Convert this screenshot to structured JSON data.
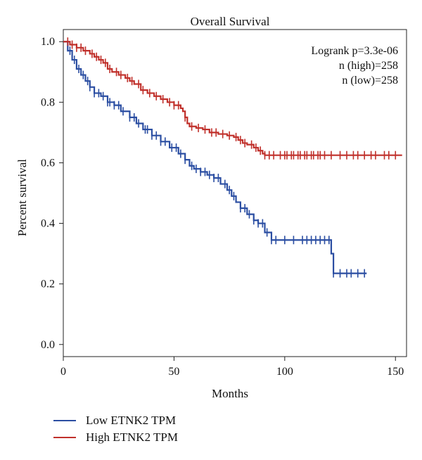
{
  "chart_data": {
    "type": "line",
    "title": "Overall Survival",
    "xlabel": "Months",
    "ylabel": "Percent survival",
    "xlim": [
      0,
      155
    ],
    "ylim": [
      -0.04,
      1.04
    ],
    "xticks": [
      0,
      50,
      100,
      150
    ],
    "yticks": [
      0.0,
      0.2,
      0.4,
      0.6,
      0.8,
      1.0
    ],
    "annotations": [
      "Logrank p=3.3e-06",
      "n (high)=258",
      "n (low)=258"
    ],
    "legend_position": "bottom-left, below plot",
    "series": [
      {
        "name": "Low ETNK2 TPM",
        "color": "#2b4ea2",
        "points": [
          [
            0,
            1.0
          ],
          [
            2,
            0.97
          ],
          [
            4,
            0.94
          ],
          [
            6,
            0.91
          ],
          [
            8,
            0.89
          ],
          [
            10,
            0.87
          ],
          [
            12,
            0.85
          ],
          [
            14,
            0.83
          ],
          [
            17,
            0.82
          ],
          [
            20,
            0.8
          ],
          [
            23,
            0.79
          ],
          [
            26,
            0.77
          ],
          [
            30,
            0.75
          ],
          [
            33,
            0.73
          ],
          [
            36,
            0.71
          ],
          [
            40,
            0.69
          ],
          [
            44,
            0.67
          ],
          [
            48,
            0.65
          ],
          [
            52,
            0.63
          ],
          [
            55,
            0.61
          ],
          [
            57,
            0.59
          ],
          [
            59,
            0.58
          ],
          [
            62,
            0.57
          ],
          [
            65,
            0.56
          ],
          [
            68,
            0.55
          ],
          [
            71,
            0.53
          ],
          [
            74,
            0.51
          ],
          [
            76,
            0.49
          ],
          [
            78,
            0.47
          ],
          [
            80,
            0.45
          ],
          [
            83,
            0.43
          ],
          [
            86,
            0.41
          ],
          [
            88,
            0.4
          ],
          [
            91,
            0.37
          ],
          [
            94,
            0.345
          ],
          [
            120,
            0.345
          ],
          [
            121,
            0.3
          ],
          [
            122,
            0.235
          ],
          [
            137,
            0.235
          ]
        ],
        "censor_x": [
          3,
          5,
          7,
          9,
          11,
          12,
          14,
          16,
          18,
          20,
          21,
          23,
          25,
          27,
          30,
          32,
          34,
          37,
          38,
          40,
          42,
          44,
          46,
          49,
          51,
          53,
          55,
          58,
          60,
          62,
          64,
          66,
          68,
          70,
          73,
          75,
          77,
          80,
          82,
          84,
          86,
          88,
          90,
          92,
          94,
          96,
          100,
          104,
          108,
          110,
          112,
          114,
          116,
          118,
          120,
          122,
          125,
          128,
          130,
          133,
          136
        ]
      },
      {
        "name": "High ETNK2 TPM",
        "color": "#c0302b",
        "points": [
          [
            0,
            1.0
          ],
          [
            3,
            0.99
          ],
          [
            6,
            0.98
          ],
          [
            9,
            0.97
          ],
          [
            12,
            0.96
          ],
          [
            14,
            0.95
          ],
          [
            16,
            0.94
          ],
          [
            18,
            0.93
          ],
          [
            20,
            0.91
          ],
          [
            22,
            0.9
          ],
          [
            25,
            0.89
          ],
          [
            28,
            0.88
          ],
          [
            30,
            0.87
          ],
          [
            32,
            0.86
          ],
          [
            35,
            0.84
          ],
          [
            38,
            0.83
          ],
          [
            41,
            0.82
          ],
          [
            44,
            0.81
          ],
          [
            47,
            0.8
          ],
          [
            50,
            0.79
          ],
          [
            53,
            0.78
          ],
          [
            54,
            0.77
          ],
          [
            55,
            0.75
          ],
          [
            56,
            0.73
          ],
          [
            57,
            0.72
          ],
          [
            60,
            0.715
          ],
          [
            63,
            0.71
          ],
          [
            66,
            0.7
          ],
          [
            70,
            0.695
          ],
          [
            74,
            0.69
          ],
          [
            77,
            0.685
          ],
          [
            79,
            0.675
          ],
          [
            81,
            0.665
          ],
          [
            83,
            0.66
          ],
          [
            86,
            0.65
          ],
          [
            88,
            0.64
          ],
          [
            90,
            0.63
          ],
          [
            91,
            0.625
          ],
          [
            153,
            0.625
          ]
        ],
        "censor_x": [
          2,
          4,
          6,
          8,
          10,
          13,
          15,
          17,
          19,
          21,
          24,
          26,
          29,
          31,
          34,
          36,
          39,
          42,
          45,
          48,
          50,
          52,
          55,
          58,
          61,
          64,
          67,
          69,
          72,
          75,
          78,
          80,
          82,
          85,
          87,
          89,
          91,
          93,
          95,
          98,
          100,
          101,
          103,
          104,
          106,
          107,
          109,
          110,
          112,
          113,
          115,
          116,
          118,
          121,
          125,
          128,
          131,
          133,
          136,
          139,
          141,
          145,
          147,
          150
        ]
      }
    ]
  }
}
